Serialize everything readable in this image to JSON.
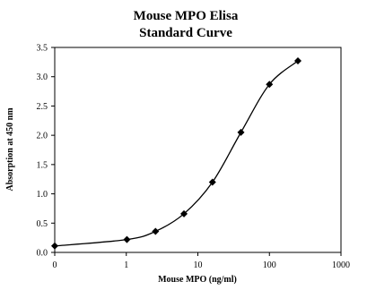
{
  "chart_data": {
    "type": "line",
    "title_lines": [
      "Mouse MPO Elisa",
      "Standard Curve"
    ],
    "xlabel": "Mouse MPO (ng/ml)",
    "ylabel": "Absorption at 450 nm",
    "x_scale": "log",
    "x_ticks": [
      "0",
      "1",
      "10",
      "100",
      "1000"
    ],
    "y_ticks": [
      "0.0",
      "0.5",
      "1.0",
      "1.5",
      "2.0",
      "2.5",
      "3.0",
      "3.5"
    ],
    "ylim": [
      0,
      3.5
    ],
    "grid": false,
    "legend": "none",
    "marker": "diamond",
    "color": "#000000",
    "series": [
      {
        "x": [
          0,
          1.02,
          2.56,
          6.4,
          16,
          40,
          100,
          250
        ],
        "y": [
          0.11,
          0.22,
          0.36,
          0.66,
          1.2,
          2.05,
          2.87,
          3.27
        ]
      }
    ]
  }
}
